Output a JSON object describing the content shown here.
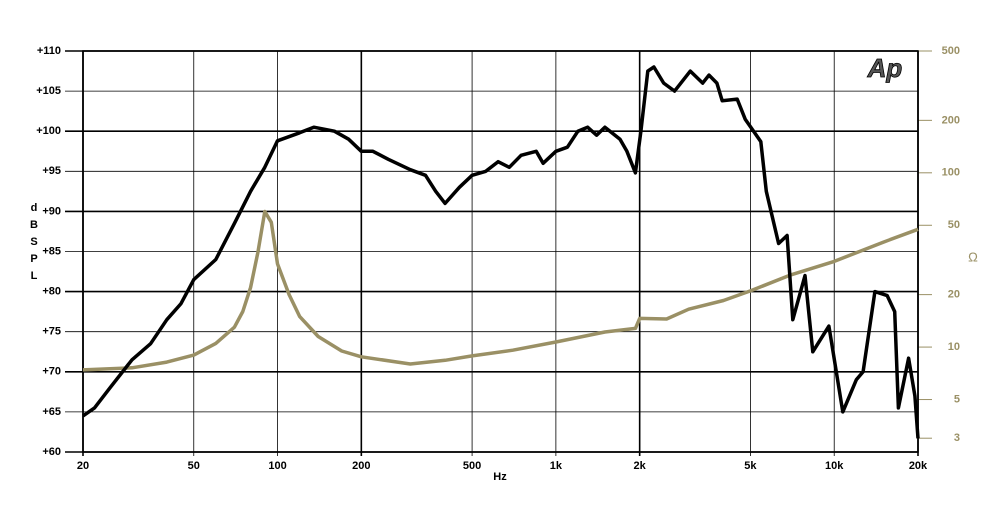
{
  "chart_data": {
    "type": "line",
    "logo": "Ap",
    "x_label": "Hz",
    "y_label": "dB SPL",
    "y2_label": "Ω",
    "xlim": [
      20,
      20000
    ],
    "ylim": [
      60,
      110
    ],
    "y2lim": [
      2.5,
      500
    ],
    "xlog": true,
    "y2log": true,
    "grid": true,
    "xticks": [
      20,
      50,
      100,
      200,
      500,
      {
        "value": 1000,
        "label": "1k"
      },
      {
        "value": 2000,
        "label": "2k"
      },
      {
        "value": 5000,
        "label": "5k"
      },
      {
        "value": 10000,
        "label": "10k"
      },
      {
        "value": 20000,
        "label": "20k"
      }
    ],
    "yticks": [
      {
        "value": 60,
        "label": "+60"
      },
      {
        "value": 65,
        "label": "+65"
      },
      {
        "value": 70,
        "label": "+70"
      },
      {
        "value": 75,
        "label": "+75"
      },
      {
        "value": 80,
        "label": "+80"
      },
      {
        "value": 85,
        "label": "+85"
      },
      {
        "value": 90,
        "label": "+90"
      },
      {
        "value": 95,
        "label": "+95"
      },
      {
        "value": 100,
        "label": "+100"
      },
      {
        "value": 105,
        "label": "+105"
      },
      {
        "value": 110,
        "label": "+110"
      }
    ],
    "y2ticks": [
      3,
      5,
      10,
      20,
      50,
      100,
      200,
      500
    ],
    "series": [
      {
        "color": "#000000",
        "axis": "y",
        "x": [
          20,
          22,
          25,
          30,
          35,
          40,
          45,
          50,
          60,
          70,
          80,
          90,
          100,
          120,
          135,
          160,
          180,
          200,
          220,
          250,
          300,
          340,
          370,
          400,
          450,
          500,
          560,
          620,
          680,
          750,
          850,
          900,
          1000,
          1100,
          1200,
          1300,
          1400,
          1500,
          1700,
          1800,
          1930,
          2020,
          2140,
          2250,
          2440,
          2670,
          3040,
          3370,
          3550,
          3790,
          3960,
          4480,
          4790,
          5450,
          5700,
          6310,
          6770,
          7100,
          7850,
          8380,
          9570,
          10740,
          12000,
          12700,
          14000,
          15500,
          16500,
          17000,
          18500,
          19500,
          20000
        ],
        "values": [
          64.5,
          65.5,
          68,
          71.5,
          73.5,
          76.5,
          78.5,
          81.5,
          84,
          88.5,
          92.5,
          95.5,
          98.8,
          99.8,
          100.5,
          100,
          99,
          97.5,
          97.5,
          96.5,
          95.2,
          94.5,
          92.5,
          91,
          93,
          94.5,
          95,
          96.2,
          95.5,
          97,
          97.5,
          96,
          97.5,
          98,
          100,
          100.5,
          99.5,
          100.5,
          99,
          97.5,
          94.8,
          100,
          107.5,
          108,
          106,
          105,
          107.5,
          106,
          107,
          106,
          103.8,
          104,
          101.5,
          98.7,
          92.5,
          86,
          87,
          76.5,
          82,
          72.5,
          75.7,
          65,
          69,
          70,
          80,
          79.5,
          77.5,
          65.5,
          71.7,
          67,
          61.7
        ]
      },
      {
        "color": "#9a9065",
        "axis": "y2",
        "x": [
          20,
          30,
          40,
          50,
          60,
          70,
          75,
          80,
          85,
          90,
          95,
          100,
          110,
          120,
          140,
          170,
          200,
          300,
          400,
          500,
          700,
          1000,
          1500,
          1930,
          2000,
          2500,
          3000,
          4000,
          5000,
          7000,
          10000,
          15000,
          20000
        ],
        "values": [
          7.4,
          7.6,
          8.2,
          9,
          10.5,
          13,
          16,
          22,
          35,
          60,
          52,
          30,
          20,
          15,
          11.5,
          9.5,
          8.8,
          8,
          8.4,
          8.9,
          9.6,
          10.7,
          12.2,
          12.8,
          14.6,
          14.5,
          16.5,
          18.5,
          21,
          26,
          31,
          40,
          47.4
        ]
      }
    ]
  }
}
